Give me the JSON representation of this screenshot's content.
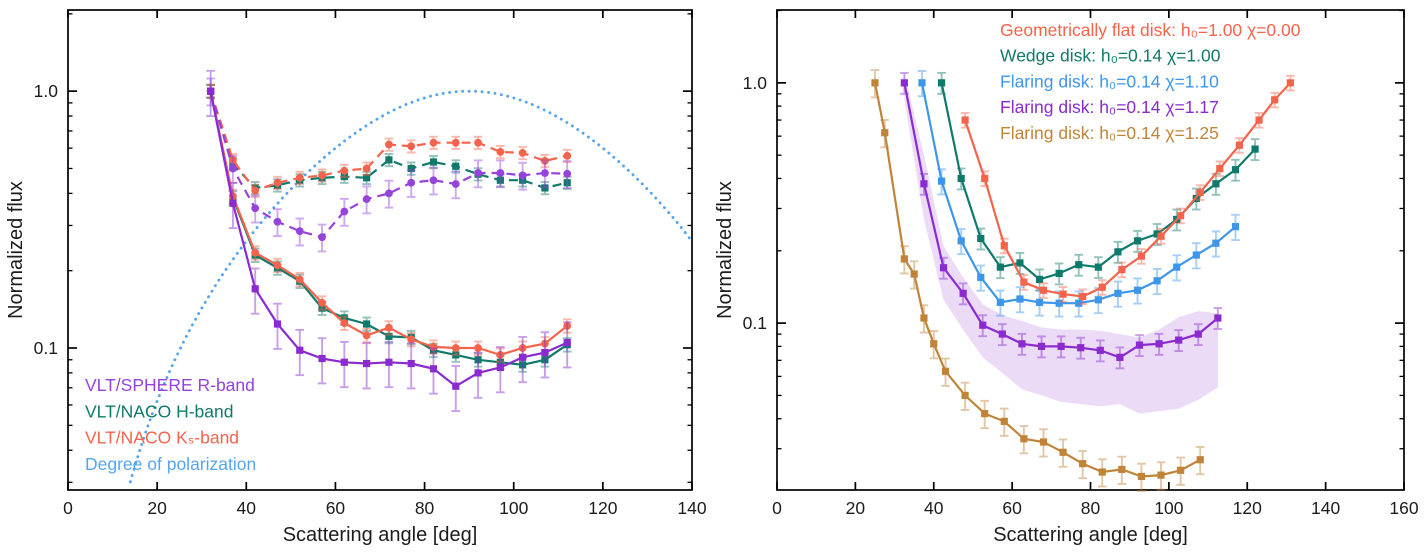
{
  "figure": {
    "background": "#ffffff",
    "text_color": "#1c1c1c",
    "axis_color": "#000000"
  },
  "chart_data": [
    {
      "id": "left",
      "type": "line",
      "xlabel": "Scattering angle [deg]",
      "ylabel": "Normalized flux",
      "y_scale": "log",
      "xlim": [
        0,
        140
      ],
      "x_ticks": [
        0,
        20,
        40,
        60,
        80,
        100,
        120,
        140
      ],
      "ylim": [
        0.028,
        2.07
      ],
      "y_ticks": [
        {
          "value": 0.1,
          "label": "0.1"
        },
        {
          "value": 1.0,
          "label": "1.0"
        }
      ],
      "legend": {
        "position": "bottom-left",
        "items": [
          {
            "label": "VLT/SPHERE R-band",
            "color": "#9643DC"
          },
          {
            "label": "VLT/NACO H-band",
            "color": "#0F7A6B"
          },
          {
            "label": "VLT/NACO Kₛ-band",
            "color": "#F4644C"
          },
          {
            "label": "Degree of polarization",
            "color": "#57A5EE"
          }
        ]
      },
      "series": [
        {
          "name": "degree-of-polarization",
          "color": "#57A5EE",
          "line": "dotted",
          "model": {
            "kind": "rayleigh",
            "x_start": 12,
            "x_end": 140,
            "peak": 1.0
          }
        },
        {
          "name": "vlt-naco-h-band-polarized",
          "color": "#0F7A6B",
          "line": "dashed",
          "marker": "square",
          "rel_err": 0.055,
          "x": [
            32,
            37,
            42,
            47,
            52,
            57,
            62,
            67,
            72,
            77,
            82,
            87,
            92,
            97,
            102,
            107,
            112
          ],
          "y": [
            1.0,
            0.52,
            0.42,
            0.43,
            0.45,
            0.46,
            0.465,
            0.46,
            0.54,
            0.5,
            0.53,
            0.51,
            0.475,
            0.45,
            0.45,
            0.42,
            0.44
          ]
        },
        {
          "name": "vlt-naco-ks-band-polarized",
          "color": "#F4644C",
          "line": "dashed",
          "marker": "circle",
          "rel_err": 0.055,
          "x": [
            32,
            37,
            42,
            47,
            52,
            57,
            62,
            67,
            72,
            77,
            82,
            87,
            92,
            97,
            102,
            107,
            112
          ],
          "y": [
            1.0,
            0.54,
            0.41,
            0.44,
            0.46,
            0.47,
            0.49,
            0.5,
            0.62,
            0.61,
            0.63,
            0.63,
            0.63,
            0.58,
            0.575,
            0.535,
            0.56
          ]
        },
        {
          "name": "vlt-sphere-r-band-polarized",
          "color": "#9643DC",
          "line": "dashed",
          "marker": "circle",
          "rel_err": 0.12,
          "x": [
            32,
            37,
            42,
            47,
            52,
            57,
            62,
            67,
            72,
            77,
            82,
            87,
            92,
            97,
            102,
            107,
            112
          ],
          "y": [
            1.0,
            0.5,
            0.35,
            0.31,
            0.285,
            0.27,
            0.34,
            0.38,
            0.4,
            0.44,
            0.45,
            0.435,
            0.48,
            0.48,
            0.47,
            0.48,
            0.477
          ]
        },
        {
          "name": "vlt-naco-h-band-total",
          "color": "#0F7A6B",
          "line": "solid",
          "marker": "square",
          "rel_err": 0.06,
          "x": [
            32,
            37,
            42,
            47,
            52,
            57,
            62,
            67,
            72,
            77,
            82,
            87,
            92,
            97,
            102,
            107,
            112
          ],
          "y": [
            1.0,
            0.385,
            0.23,
            0.205,
            0.182,
            0.143,
            0.131,
            0.124,
            0.111,
            0.11,
            0.098,
            0.094,
            0.09,
            0.088,
            0.086,
            0.09,
            0.103
          ]
        },
        {
          "name": "vlt-naco-ks-band-total",
          "color": "#F4644C",
          "line": "solid",
          "marker": "circle",
          "rel_err": 0.06,
          "x": [
            32,
            37,
            42,
            47,
            52,
            57,
            62,
            67,
            72,
            77,
            82,
            87,
            92,
            97,
            102,
            107,
            112
          ],
          "y": [
            1.0,
            0.39,
            0.235,
            0.21,
            0.185,
            0.15,
            0.125,
            0.112,
            0.12,
            0.108,
            0.101,
            0.1,
            0.1,
            0.094,
            0.1,
            0.104,
            0.122
          ]
        },
        {
          "name": "vlt-sphere-r-band-total",
          "color": "#8A2BD0",
          "line": "solid",
          "marker": "square",
          "rel_err": 0.2,
          "x": [
            32,
            37,
            42,
            47,
            52,
            57,
            62,
            67,
            72,
            77,
            82,
            87,
            92,
            97,
            102,
            107,
            112
          ],
          "y": [
            1.0,
            0.366,
            0.17,
            0.124,
            0.098,
            0.091,
            0.088,
            0.087,
            0.088,
            0.087,
            0.083,
            0.071,
            0.08,
            0.084,
            0.092,
            0.096,
            0.105
          ]
        }
      ]
    },
    {
      "id": "right",
      "type": "line",
      "xlabel": "Scattering angle [deg]",
      "ylabel": "Normalized flux",
      "y_scale": "log",
      "xlim": [
        0,
        160
      ],
      "x_ticks": [
        0,
        20,
        40,
        60,
        80,
        100,
        120,
        140,
        160
      ],
      "ylim": [
        0.0202,
        2.01
      ],
      "y_ticks": [
        {
          "value": 0.1,
          "label": "0.1"
        },
        {
          "value": 1.0,
          "label": "1.0"
        }
      ],
      "legend": {
        "position": "top-right",
        "items": [
          {
            "label": "Geometrically flat disk: h₀=1.00 χ=0.00",
            "color": "#F4644C"
          },
          {
            "label": "Wedge disk: h₀=0.14 χ=1.00",
            "color": "#0F7A6B"
          },
          {
            "label": "Flaring disk: h₀=0.14 χ=1.10",
            "color": "#3E96EA"
          },
          {
            "label": "Flaring disk: h₀=0.14 χ=1.17",
            "color": "#8A2BD0"
          },
          {
            "label": "Flaring disk: h₀=0.14 χ=1.25",
            "color": "#C08439"
          }
        ]
      },
      "series": [
        {
          "name": "flaring-disk-chi-1.25",
          "color": "#C08439",
          "line": "solid",
          "marker": "square",
          "rel_err": 0.13,
          "x": [
            25,
            27.5,
            32.5,
            35,
            37.5,
            40,
            43,
            48,
            53,
            58,
            63,
            68,
            73,
            78,
            83,
            88,
            93,
            98,
            103,
            108
          ],
          "y": [
            1.0,
            0.62,
            0.185,
            0.16,
            0.105,
            0.082,
            0.063,
            0.05,
            0.042,
            0.039,
            0.033,
            0.032,
            0.029,
            0.026,
            0.024,
            0.0246,
            0.023,
            0.0233,
            0.0244,
            0.027
          ]
        },
        {
          "name": "flaring-disk-chi-1.17",
          "color": "#8A2BD0",
          "line": "solid",
          "marker": "square",
          "rel_err": 0.1,
          "x": [
            32.5,
            37.5,
            42.5,
            47.5,
            52.5,
            57.5,
            62.5,
            67.5,
            72.5,
            77.5,
            82.5,
            87.5,
            92.5,
            97.5,
            102.5,
            107.5,
            112.5
          ],
          "y": [
            1.0,
            0.38,
            0.17,
            0.133,
            0.098,
            0.09,
            0.082,
            0.08,
            0.08,
            0.079,
            0.077,
            0.072,
            0.081,
            0.082,
            0.085,
            0.09,
            0.105
          ],
          "band": {
            "upper": [
              1.1,
              0.5,
              0.21,
              0.155,
              0.12,
              0.108,
              0.102,
              0.096,
              0.094,
              0.094,
              0.093,
              0.09,
              0.087,
              0.094,
              0.106,
              0.112,
              0.11
            ],
            "lower": [
              0.85,
              0.27,
              0.125,
              0.094,
              0.072,
              0.062,
              0.053,
              0.05,
              0.047,
              0.046,
              0.045,
              0.046,
              0.042,
              0.043,
              0.044,
              0.048,
              0.054
            ],
            "fill": "#8A2BD0",
            "opacity": 0.17
          }
        },
        {
          "name": "flaring-disk-chi-1.10",
          "color": "#3E96EA",
          "line": "solid",
          "marker": "square",
          "rel_err": 0.12,
          "x": [
            37,
            42,
            47,
            52,
            57,
            62,
            67,
            72,
            77,
            82,
            87,
            92,
            97,
            102,
            107,
            112,
            117
          ],
          "y": [
            1.0,
            0.39,
            0.22,
            0.155,
            0.122,
            0.126,
            0.122,
            0.121,
            0.121,
            0.125,
            0.133,
            0.137,
            0.15,
            0.171,
            0.192,
            0.215,
            0.252
          ]
        },
        {
          "name": "wedge-disk-chi-1.00",
          "color": "#0F7A6B",
          "line": "solid",
          "marker": "square",
          "rel_err": 0.1,
          "x": [
            42,
            47,
            52,
            57,
            62,
            67,
            72,
            77,
            82,
            87,
            92,
            97,
            102,
            107,
            112,
            117,
            122
          ],
          "y": [
            1.0,
            0.4,
            0.225,
            0.171,
            0.178,
            0.152,
            0.161,
            0.175,
            0.171,
            0.198,
            0.22,
            0.235,
            0.27,
            0.33,
            0.38,
            0.435,
            0.53
          ]
        },
        {
          "name": "geometrically-flat-disk",
          "color": "#F4644C",
          "line": "solid",
          "marker": "square",
          "rel_err": 0.07,
          "x": [
            48,
            53,
            58,
            63,
            68,
            73,
            78,
            83,
            88,
            93,
            98,
            103,
            108,
            113,
            118,
            123,
            127,
            131
          ],
          "y": [
            0.7,
            0.4,
            0.21,
            0.148,
            0.137,
            0.132,
            0.129,
            0.141,
            0.167,
            0.19,
            0.23,
            0.28,
            0.35,
            0.44,
            0.55,
            0.7,
            0.85,
            1.0
          ]
        }
      ]
    }
  ]
}
